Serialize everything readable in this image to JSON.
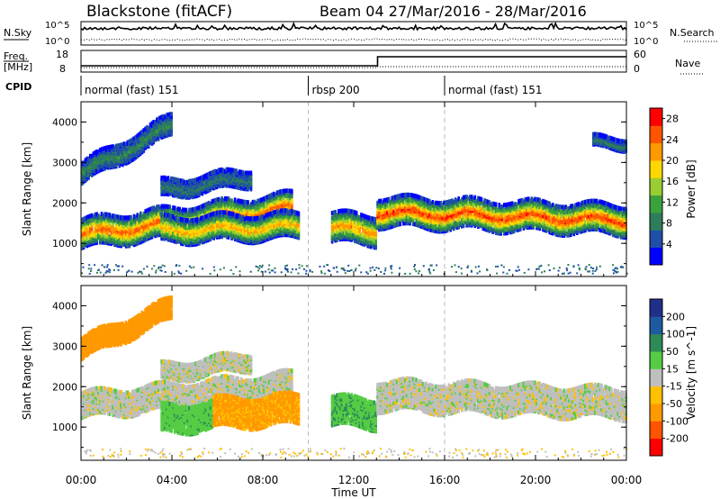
{
  "header": {
    "title": "Blackstone (fitACF)",
    "beam_info": "Beam 04  27/Mar/2016 - 28/Mar/2016"
  },
  "noise_panel": {
    "left_label": "N.Sky",
    "right_label": "N.Search",
    "left_ticks": [
      "10^5",
      "10^0"
    ],
    "right_ticks": [
      "10^5",
      "10^0"
    ]
  },
  "freq_panel": {
    "left_label_top": "Freq.",
    "left_label_bottom": "[MHz]",
    "right_label": "Nave",
    "left_ticks": [
      "18",
      "8"
    ],
    "right_ticks": [
      "60",
      "0"
    ]
  },
  "cpid": {
    "label": "CPID",
    "segments": [
      {
        "start_hour": 0,
        "end_hour": 10,
        "label": "normal (fast) 151"
      },
      {
        "start_hour": 10,
        "end_hour": 16,
        "label": "rbsp 200"
      },
      {
        "start_hour": 16,
        "end_hour": 24,
        "label": "normal (fast) 151"
      }
    ]
  },
  "colors": {
    "power_scale": [
      "#0000ff",
      "#1f4fa8",
      "#2e7d5a",
      "#3aa23a",
      "#9acd32",
      "#ffd700",
      "#ff9900",
      "#ff5500",
      "#ff0000"
    ],
    "velocity_scale": [
      "#ff0000",
      "#ff5500",
      "#ff9900",
      "#ffc000",
      "#bfbfbf",
      "#55cc44",
      "#2e8b57",
      "#1e5aa0",
      "#1e2f8c"
    ]
  },
  "chart_data": [
    {
      "type": "heatmap",
      "name": "power",
      "xlabel": "",
      "ylabel": "Slant Range [km]",
      "xlim_hours": [
        0,
        24
      ],
      "ylim_km": [
        180,
        4500
      ],
      "y_ticks": [
        "1000",
        "2000",
        "3000",
        "4000"
      ],
      "colorbar": {
        "label": "Power [dB]",
        "ticks": [
          "4",
          "8",
          "12",
          "16",
          "20",
          "24",
          "28"
        ],
        "range": [
          0,
          30
        ]
      },
      "echo_regions": [
        {
          "t0": 0.0,
          "t1": 9.3,
          "r_center_start": 1200,
          "r_center_end": 1850,
          "width_km": 700,
          "level": 0.85
        },
        {
          "t0": 0.0,
          "t1": 4.0,
          "r_center_start": 2700,
          "r_center_end": 3900,
          "width_km": 500,
          "level": 0.25
        },
        {
          "t0": 3.5,
          "t1": 7.5,
          "r_center_start": 2300,
          "r_center_end": 2600,
          "width_km": 400,
          "level": 0.2
        },
        {
          "t0": 3.5,
          "t1": 9.6,
          "r_center_start": 1300,
          "r_center_end": 1400,
          "width_km": 600,
          "level": 0.7
        },
        {
          "t0": 11.0,
          "t1": 13.0,
          "r_center_start": 1350,
          "r_center_end": 1300,
          "width_km": 700,
          "level": 0.75
        },
        {
          "t0": 13.0,
          "t1": 24.0,
          "r_center_start": 1750,
          "r_center_end": 1550,
          "width_km": 700,
          "level": 0.9
        },
        {
          "t0": 22.5,
          "t1": 24.0,
          "r_center_start": 3450,
          "r_center_end": 3450,
          "width_km": 250,
          "level": 0.2
        }
      ]
    },
    {
      "type": "heatmap",
      "name": "velocity",
      "xlabel": "Time UT",
      "ylabel": "Slant Range [km]",
      "xlim_hours": [
        0,
        24
      ],
      "ylim_km": [
        180,
        4500
      ],
      "x_ticks": [
        "00:00",
        "04:00",
        "08:00",
        "12:00",
        "16:00",
        "20:00",
        "00:00"
      ],
      "y_ticks": [
        "1000",
        "2000",
        "3000",
        "4000"
      ],
      "colorbar": {
        "label": "Velocity [m s^-1]",
        "ticks": [
          "-200",
          "-100",
          "-50",
          "-15",
          "15",
          "50",
          "100",
          "200"
        ],
        "range": [
          -250,
          250
        ]
      },
      "echo_regions": [
        {
          "t0": 0.0,
          "t1": 9.3,
          "r_center_start": 1500,
          "r_center_end": 2000,
          "width_km": 600,
          "velocity": 0
        },
        {
          "t0": 0.0,
          "t1": 4.0,
          "r_center_start": 2900,
          "r_center_end": 3900,
          "width_km": 500,
          "velocity": -70
        },
        {
          "t0": 3.5,
          "t1": 7.5,
          "r_center_start": 2300,
          "r_center_end": 2600,
          "width_km": 400,
          "velocity": 0
        },
        {
          "t0": 3.5,
          "t1": 5.8,
          "r_center_start": 1150,
          "r_center_end": 1250,
          "width_km": 650,
          "velocity": 35
        },
        {
          "t0": 5.8,
          "t1": 9.6,
          "r_center_start": 1300,
          "r_center_end": 1400,
          "width_km": 700,
          "velocity": -60
        },
        {
          "t0": 11.0,
          "t1": 13.0,
          "r_center_start": 1350,
          "r_center_end": 1300,
          "width_km": 700,
          "velocity": 40
        },
        {
          "t0": 13.0,
          "t1": 24.0,
          "r_center_start": 1750,
          "r_center_end": 1550,
          "width_km": 700,
          "velocity": 0
        }
      ]
    }
  ]
}
